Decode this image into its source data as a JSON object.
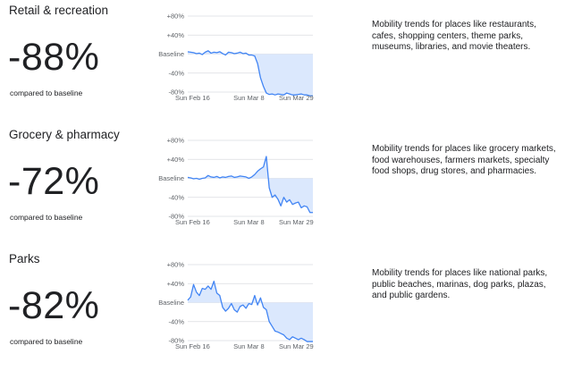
{
  "sections": [
    {
      "title": "Retail & recreation",
      "percent": "-88%",
      "compared": "compared to baseline",
      "description": "Mobility trends for places like restaurants, cafes, shopping centers, theme parks, museums, libraries, and movie theaters."
    },
    {
      "title": "Grocery & pharmacy",
      "percent": "-72%",
      "compared": "compared to baseline",
      "description": "Mobility trends for places like grocery markets, food warehouses, farmers markets, specialty food shops, drug stores, and pharmacies."
    },
    {
      "title": "Parks",
      "percent": "-82%",
      "compared": "compared to baseline",
      "description": "Mobility trends for places like national parks, public beaches, marinas, dog parks, plazas, and public gardens."
    }
  ],
  "colors": {
    "line": "#4285f4",
    "fill": "#dbe8fd",
    "grid": "#dadce0",
    "text": "#202124",
    "axis": "#5f6368"
  },
  "chart_data": [
    {
      "type": "area",
      "y_ticks": [
        "+80%",
        "+40%",
        "Baseline",
        "-40%",
        "-80%"
      ],
      "y_tick_values": [
        80,
        40,
        0,
        -40,
        -80
      ],
      "x_ticks": [
        "Sun Feb 16",
        "Sun Mar 8",
        "Sun Mar 29"
      ],
      "x_tick_days": [
        0,
        21,
        42
      ],
      "ylim": [
        -80,
        80
      ],
      "x_days": [
        0,
        1,
        2,
        3,
        4,
        5,
        6,
        7,
        8,
        9,
        10,
        11,
        12,
        13,
        14,
        15,
        16,
        17,
        18,
        19,
        20,
        21,
        22,
        23,
        24,
        25,
        26,
        27,
        28,
        29,
        30,
        31,
        32,
        33,
        34,
        35,
        36,
        37,
        38,
        39,
        40,
        41,
        42,
        43
      ],
      "values": [
        5,
        4,
        3,
        1,
        2,
        -1,
        4,
        7,
        2,
        4,
        3,
        5,
        1,
        -2,
        4,
        3,
        1,
        2,
        4,
        1,
        2,
        -2,
        -2,
        -4,
        -20,
        -50,
        -68,
        -82,
        -85,
        -84,
        -86,
        -84,
        -85,
        -86,
        -82,
        -84,
        -86,
        -86,
        -85,
        -84,
        -86,
        -86,
        -88,
        -88
      ]
    },
    {
      "type": "area",
      "y_ticks": [
        "+80%",
        "+40%",
        "Baseline",
        "-40%",
        "-80%"
      ],
      "y_tick_values": [
        80,
        40,
        0,
        -40,
        -80
      ],
      "x_ticks": [
        "Sun Feb 16",
        "Sun Mar 8",
        "Sun Mar 29"
      ],
      "x_tick_days": [
        0,
        21,
        42
      ],
      "ylim": [
        -80,
        80
      ],
      "x_days": [
        0,
        1,
        2,
        3,
        4,
        5,
        6,
        7,
        8,
        9,
        10,
        11,
        12,
        13,
        14,
        15,
        16,
        17,
        18,
        19,
        20,
        21,
        22,
        23,
        24,
        25,
        26,
        27,
        28,
        29,
        30,
        31,
        32,
        33,
        34,
        35,
        36,
        37,
        38,
        39,
        40,
        41,
        42,
        43
      ],
      "values": [
        2,
        1,
        -1,
        0,
        -2,
        0,
        1,
        6,
        3,
        2,
        4,
        1,
        3,
        2,
        4,
        5,
        2,
        3,
        5,
        4,
        3,
        0,
        3,
        8,
        15,
        20,
        24,
        46,
        -20,
        -40,
        -35,
        -44,
        -58,
        -40,
        -50,
        -45,
        -55,
        -52,
        -50,
        -62,
        -58,
        -60,
        -72,
        -72
      ]
    },
    {
      "type": "area",
      "y_ticks": [
        "+80%",
        "+40%",
        "Baseline",
        "-40%",
        "-80%"
      ],
      "y_tick_values": [
        80,
        40,
        0,
        -40,
        -80
      ],
      "x_ticks": [
        "Sun Feb 16",
        "Sun Mar 8",
        "Sun Mar 29"
      ],
      "x_tick_days": [
        0,
        21,
        42
      ],
      "ylim": [
        -80,
        80
      ],
      "x_days": [
        0,
        1,
        2,
        3,
        4,
        5,
        6,
        7,
        8,
        9,
        10,
        11,
        12,
        13,
        14,
        15,
        16,
        17,
        18,
        19,
        20,
        21,
        22,
        23,
        24,
        25,
        26,
        27,
        28,
        29,
        30,
        31,
        32,
        33,
        34,
        35,
        36,
        37,
        38,
        39,
        40,
        41,
        42,
        43
      ],
      "values": [
        5,
        12,
        38,
        22,
        15,
        30,
        28,
        35,
        28,
        45,
        20,
        15,
        -10,
        -18,
        -12,
        -2,
        -15,
        -20,
        -8,
        -5,
        -12,
        -2,
        -4,
        15,
        -5,
        10,
        -10,
        -15,
        -40,
        -50,
        -60,
        -62,
        -65,
        -68,
        -75,
        -78,
        -72,
        -75,
        -78,
        -75,
        -78,
        -82,
        -82,
        -82
      ]
    }
  ]
}
